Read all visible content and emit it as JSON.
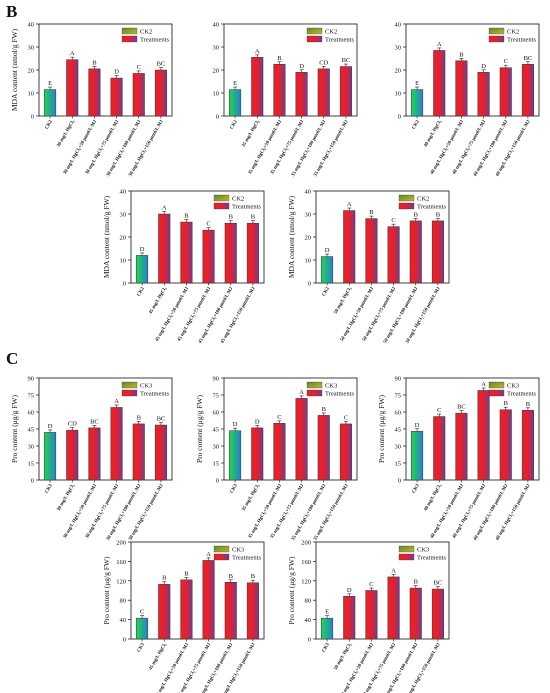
{
  "panels": [
    {
      "letter": "B"
    },
    {
      "letter": "C"
    }
  ],
  "colors": {
    "control_gradient": [
      "#1fd84a",
      "#2a7fd0"
    ],
    "treatment_gradient": [
      "#e8202a",
      "#7a3a8a"
    ],
    "legend_ck_gradient": [
      "#5a8a2a",
      "#c8b430"
    ],
    "axis": "#111111"
  },
  "chart_data": [
    {
      "type": "bar",
      "panel": "B",
      "ylabel": "MDA content (nmol/g FW)",
      "ylim": [
        0,
        40
      ],
      "yticks": [
        0,
        10,
        20,
        30,
        40
      ],
      "legend": [
        "CK2",
        "Treatments"
      ],
      "legend_position": "top-right",
      "categories": [
        "CK2",
        "30 mg/L HgCl₂",
        "30 mg/L HgCl₂+50 μmol/L MJ",
        "30 mg/L HgCl₂+75 μmol/L MJ",
        "30 mg/L HgCl₂+100 μmol/L MJ",
        "30 mg/L HgCl₂+150 μmol/L MJ"
      ],
      "values": [
        11.5,
        24.5,
        20.5,
        16.5,
        18.5,
        20
      ],
      "letters": [
        "E",
        "A",
        "B",
        "D",
        "C",
        "BC"
      ]
    },
    {
      "type": "bar",
      "panel": "B",
      "ylabel": "",
      "ylim": [
        0,
        40
      ],
      "yticks": [
        0,
        10,
        20,
        30,
        40
      ],
      "legend": [
        "CK2",
        "Treatments"
      ],
      "legend_position": "top-right",
      "categories": [
        "CK2",
        "35 mg/L HgCl₂",
        "35 mg/L HgCl₂+50 μmol/L MJ",
        "35 mg/L HgCl₂+75 μmol/L MJ",
        "35 mg/L HgCl₂+100 μmol/L MJ",
        "35 mg/L HgCl₂+150 μmol/L MJ"
      ],
      "values": [
        11.5,
        25.5,
        22.5,
        19,
        20.5,
        21.5
      ],
      "letters": [
        "E",
        "A",
        "B",
        "D",
        "CD",
        "BC"
      ]
    },
    {
      "type": "bar",
      "panel": "B",
      "ylabel": "",
      "ylim": [
        0,
        40
      ],
      "yticks": [
        0,
        10,
        20,
        30,
        40
      ],
      "legend": [
        "CK2",
        "Treatments"
      ],
      "legend_position": "top-right",
      "categories": [
        "CK2",
        "40 mg/L HgCl₂",
        "40 mg/L HgCl₂+50 μmol/L MJ",
        "40 mg/L HgCl₂+75 μmol/L MJ",
        "40 mg/L HgCl₂+100 μmol/L MJ",
        "40 mg/L HgCl₂+150 μmol/L MJ"
      ],
      "values": [
        11.5,
        28.5,
        24,
        19,
        21,
        22.5
      ],
      "letters": [
        "E",
        "A",
        "B",
        "D",
        "C",
        "BC"
      ]
    },
    {
      "type": "bar",
      "panel": "B",
      "ylabel": "MDA content (nmol/g FW)",
      "ylim": [
        0,
        40
      ],
      "yticks": [
        0,
        10,
        20,
        30,
        40
      ],
      "legend": [
        "CK2",
        "Treatments"
      ],
      "legend_position": "top-right",
      "categories": [
        "CK2",
        "45 mg/L HgCl₂",
        "45 mg/L HgCl₂+50 μmol/L MJ",
        "45 mg/L HgCl₂+75 μmol/L MJ",
        "45 mg/L HgCl₂+100 μmol/L MJ",
        "45 mg/L HgCl₂+150 μmol/L MJ"
      ],
      "values": [
        12,
        30,
        26.5,
        23,
        26,
        26
      ],
      "letters": [
        "D",
        "A",
        "B",
        "C",
        "B",
        "B"
      ]
    },
    {
      "type": "bar",
      "panel": "B",
      "ylabel": "MDA content (nmol/g FW)",
      "ylim": [
        0,
        40
      ],
      "yticks": [
        0,
        10,
        20,
        30,
        40
      ],
      "legend": [
        "CK2",
        "Treatments"
      ],
      "legend_position": "top-right",
      "categories": [
        "CK2",
        "50 mg/L HgCl₂",
        "50 mg/L HgCl₂+50 μmol/L MJ",
        "50 mg/L HgCl₂+75 μmol/L MJ",
        "50 mg/L HgCl₂+100 μmol/L MJ",
        "50 mg/L HgCl₂+150 μmol/L MJ"
      ],
      "values": [
        11.5,
        31.5,
        28,
        24.5,
        27,
        27
      ],
      "letters": [
        "D",
        "A",
        "B",
        "C",
        "B",
        "B"
      ]
    },
    {
      "type": "bar",
      "panel": "C",
      "ylabel": "Pro content (μg/g FW)",
      "ylim": [
        0,
        90
      ],
      "yticks": [
        0,
        15,
        30,
        45,
        60,
        75,
        90
      ],
      "legend": [
        "CK3",
        "Treatments"
      ],
      "legend_position": "top-right",
      "categories": [
        "CK3",
        "30 mg/L HgCl₂",
        "30 mg/L HgCl₂+50 μmol/L MJ",
        "30 mg/L HgCl₂+75 μmol/L MJ",
        "30 mg/L HgCl₂+100 μmol/L MJ",
        "30 mg/L HgCl₂+150 μmol/L MJ"
      ],
      "values": [
        42,
        44,
        46,
        64,
        49.5,
        48.5
      ],
      "letters": [
        "D",
        "CD",
        "BC",
        "A",
        "B",
        "BC"
      ]
    },
    {
      "type": "bar",
      "panel": "C",
      "ylabel": "Pro content (μg/g FW)",
      "ylim": [
        0,
        90
      ],
      "yticks": [
        0,
        15,
        30,
        45,
        60,
        75,
        90
      ],
      "legend": [
        "CK3",
        "Treatments"
      ],
      "legend_position": "top-right",
      "categories": [
        "CK3",
        "35 mg/L HgCl₂",
        "35 mg/L HgCl₂+50 μmol/L MJ",
        "35 mg/L HgCl₂+75 μmol/L MJ",
        "35 mg/L HgCl₂+100 μmol/L MJ",
        "35 mg/L HgCl₂+150 μmol/L MJ"
      ],
      "values": [
        43.5,
        46,
        50,
        72,
        57,
        49.5
      ],
      "letters": [
        "D",
        "D",
        "C",
        "A",
        "B",
        "C"
      ]
    },
    {
      "type": "bar",
      "panel": "C",
      "ylabel": "Pro content (μg/g FW)",
      "ylim": [
        0,
        90
      ],
      "yticks": [
        0,
        15,
        30,
        45,
        60,
        75,
        90
      ],
      "legend": [
        "CK3",
        "Treatments"
      ],
      "legend_position": "top-right",
      "categories": [
        "CK3",
        "40 mg/L HgCl₂",
        "40 mg/L HgCl₂+50 μmol/L MJ",
        "40 mg/L HgCl₂+75 μmol/L MJ",
        "40 mg/L HgCl₂+100 μmol/L MJ",
        "40 mg/L HgCl₂+150 μmol/L MJ"
      ],
      "values": [
        43,
        56,
        59,
        79,
        62,
        61.5
      ],
      "letters": [
        "D",
        "C",
        "BC",
        "A",
        "B",
        "B"
      ]
    },
    {
      "type": "bar",
      "panel": "C",
      "ylabel": "Pro content (μg/g FW)",
      "ylim": [
        0,
        200
      ],
      "yticks": [
        0,
        40,
        80,
        120,
        160,
        200
      ],
      "legend": [
        "CK3",
        "Treatments"
      ],
      "legend_position": "top-right",
      "categories": [
        "CK3",
        "45 mg/L HgCl₂",
        "45 mg/L HgCl₂+50 μmol/L MJ",
        "45 mg/L HgCl₂+75 μmol/L MJ",
        "45 mg/L HgCl₂+100 μmol/L MJ",
        "45 mg/L HgCl₂+150 μmol/L MJ"
      ],
      "values": [
        43,
        113,
        122,
        162,
        117,
        116
      ],
      "letters": [
        "C",
        "B",
        "B",
        "A",
        "B",
        "B"
      ]
    },
    {
      "type": "bar",
      "panel": "C",
      "ylabel": "Pro content (μg/g FW)",
      "ylim": [
        0,
        200
      ],
      "yticks": [
        0,
        40,
        80,
        120,
        160,
        200
      ],
      "legend": [
        "CK3",
        "Treatments"
      ],
      "legend_position": "top-right",
      "categories": [
        "CK3",
        "50 mg/L HgCl₂",
        "50 mg/L HgCl₂+50 μmol/L MJ",
        "50 mg/L HgCl₂+75 μmol/L MJ",
        "50 mg/L HgCl₂+100 μmol/L MJ",
        "50 mg/L HgCl₂+150 μmol/L MJ"
      ],
      "values": [
        43,
        88,
        100,
        128,
        105,
        103
      ],
      "letters": [
        "E",
        "D",
        "C",
        "A",
        "B",
        "BC"
      ]
    }
  ]
}
